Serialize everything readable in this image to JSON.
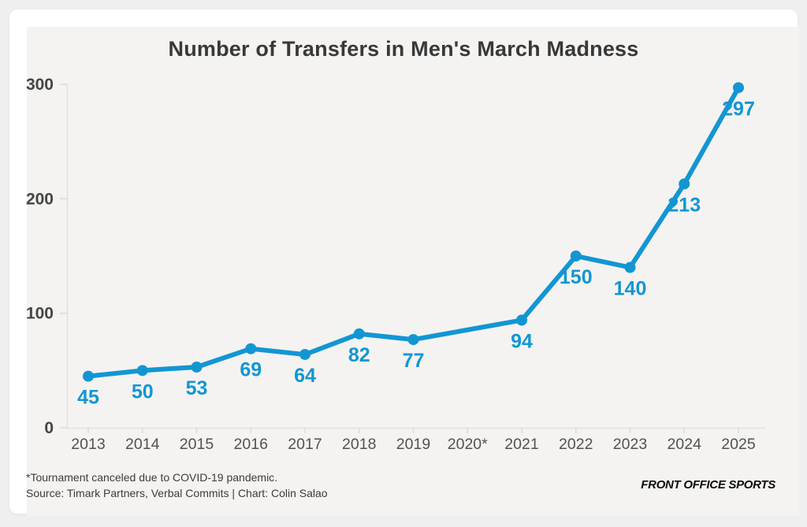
{
  "chart_data": {
    "type": "line",
    "title": "Number of Transfers in Men's March Madness",
    "categories": [
      "2013",
      "2014",
      "2015",
      "2016",
      "2017",
      "2018",
      "2019",
      "2020*",
      "2021",
      "2022",
      "2023",
      "2024",
      "2025"
    ],
    "values": [
      45,
      50,
      53,
      69,
      64,
      82,
      77,
      null,
      94,
      150,
      140,
      213,
      297
    ],
    "xlabel": "",
    "ylabel": "",
    "ylim": [
      0,
      300
    ],
    "yticks": [
      0,
      100,
      200,
      300
    ],
    "grid": false,
    "legend": "none",
    "annotation": "2020 has no data point; the line connects 2019 directly to 2021 because the tournament was canceled"
  },
  "footer": {
    "footnote": "*Tournament canceled due to COVID-19 pandemic.",
    "source": "Source: Timark Partners, Verbal Commits | Chart: Colin Salao"
  },
  "brand": {
    "label": "FRONT OFFICE SPORTS"
  },
  "colors": {
    "line": "#1296d3",
    "point": "#1296d3",
    "value_label": "#1296d3",
    "axis_line": "#e3e1de",
    "tick_mark": "#dbd9d6",
    "y_tick_text": "#454545",
    "x_tick_text": "#525252",
    "title_text": "#383838",
    "panel_bg": "#f4f3f1",
    "card_bg": "#ffffff",
    "page_bg": "#efefef"
  }
}
